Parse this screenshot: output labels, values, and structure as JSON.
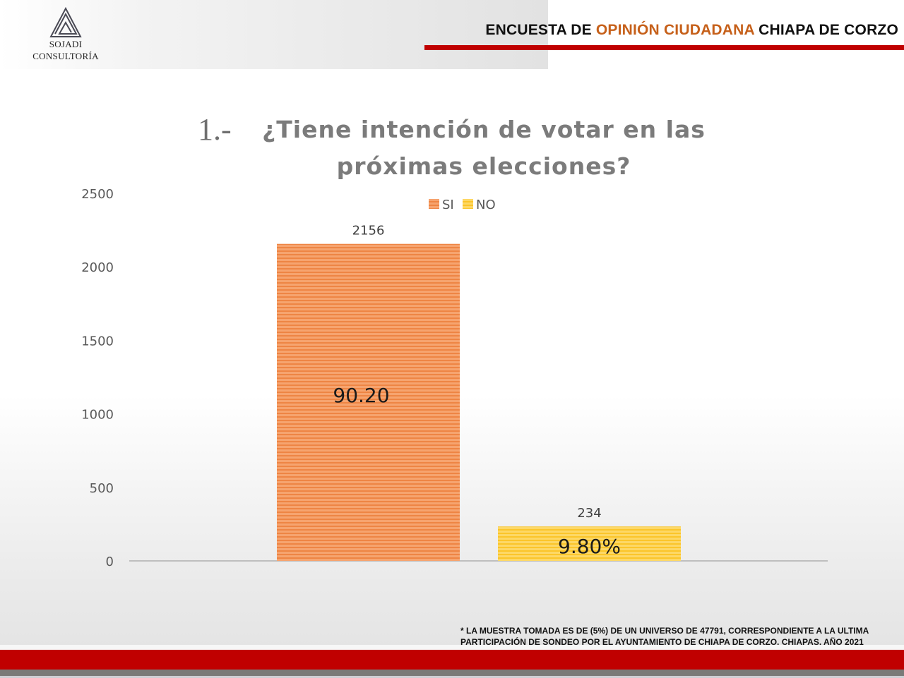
{
  "header": {
    "logo": {
      "icon": "triangle-spiral-logo-icon",
      "line1": "SOJADI",
      "line2": "CONSULTORÍA"
    },
    "title_part1": "ENCUESTA DE ",
    "title_accent": "OPINIÓN CIUDADANA",
    "title_part2": " CHIAPA DE CORZO",
    "accent_color": "#c6601a",
    "rule_color": "#c00000"
  },
  "question": {
    "number": "1.-",
    "text": "¿Tiene intención de votar en las próximas elecciones?"
  },
  "chart_data": {
    "type": "bar",
    "title": "¿Tiene intención de votar en las próximas elecciones?",
    "xlabel": "",
    "ylabel": "",
    "categories": [
      "SI",
      "NO"
    ],
    "series": [
      {
        "name": "SI",
        "values": [
          2156
        ],
        "color": "#f08a4b",
        "data_label": "2156",
        "inner_label": "90.20"
      },
      {
        "name": "NO",
        "values": [
          234
        ],
        "color": "#fcc93a",
        "data_label": "234",
        "inner_label": "9.80%"
      }
    ],
    "ylim": [
      0,
      2500
    ],
    "yticks": [
      0,
      500,
      1000,
      1500,
      2000,
      2500
    ],
    "ytick_labels": [
      "0",
      "500",
      "1000",
      "1500",
      "2000",
      "2500"
    ],
    "grid": false,
    "legend": {
      "position": "top-center",
      "entries": [
        "SI",
        "NO"
      ]
    }
  },
  "footnote": {
    "line1": "* LA MUESTRA TOMADA ES DE (5%) DE UN UNIVERSO DE 47791, CORRESPONDIENTE A LA ULTIMA",
    "line2": "PARTICIPACIÓN DE SONDEO  POR EL AYUNTAMIENTO DE CHIAPA DE CORZO, CHIAPAS. AÑO 2021"
  },
  "footer": {
    "band_color": "#c00000"
  }
}
